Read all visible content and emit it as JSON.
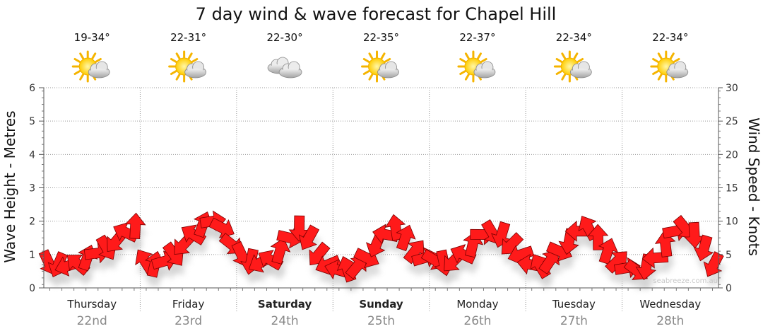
{
  "chart_data": {
    "type": "line",
    "title": "7 day wind & wave forecast for Chapel Hill",
    "ylabel_left": "Wave Height - Metres",
    "ylabel_right": "Wind Speed - Knots",
    "ylim_left": [
      0,
      6
    ],
    "ylim_right": [
      0,
      30
    ],
    "yticks_left": [
      "0",
      "1",
      "2",
      "3",
      "4",
      "5",
      "6"
    ],
    "yticks_right": [
      "0",
      "5",
      "10",
      "15",
      "20",
      "25",
      "30"
    ],
    "grid": true,
    "days": [
      {
        "day": "Thursday",
        "date": "22nd",
        "temp": "19-34°",
        "weather": "partly-cloudy-sun-icon",
        "bold": false
      },
      {
        "day": "Friday",
        "date": "23rd",
        "temp": "22-31°",
        "weather": "partly-cloudy-sun-icon",
        "bold": false
      },
      {
        "day": "Saturday",
        "date": "24th",
        "temp": "22-30°",
        "weather": "cloudy-icon",
        "bold": true
      },
      {
        "day": "Sunday",
        "date": "25th",
        "temp": "22-35°",
        "weather": "partly-cloudy-sun-icon",
        "bold": true
      },
      {
        "day": "Monday",
        "date": "26th",
        "temp": "22-37°",
        "weather": "partly-cloudy-sun-icon",
        "bold": false
      },
      {
        "day": "Tuesday",
        "date": "27th",
        "temp": "22-34°",
        "weather": "partly-cloudy-sun-icon",
        "bold": false
      },
      {
        "day": "Wednesday",
        "date": "28th",
        "temp": "22-34°",
        "weather": "partly-cloudy-sun-icon",
        "bold": false
      }
    ],
    "series": [
      {
        "name": "Wind Speed",
        "unit": "knots",
        "x_days": [
          0.0,
          0.1,
          0.2,
          0.3,
          0.4,
          0.5,
          0.6,
          0.7,
          0.8,
          0.9,
          1.0,
          1.1,
          1.2,
          1.3,
          1.4,
          1.5,
          1.6,
          1.7,
          1.8,
          1.9,
          2.0,
          2.1,
          2.2,
          2.3,
          2.4,
          2.5,
          2.6,
          2.7,
          2.8,
          2.9,
          3.0,
          3.1,
          3.2,
          3.3,
          3.4,
          3.5,
          3.6,
          3.7,
          3.8,
          3.9,
          4.0,
          4.1,
          4.2,
          4.3,
          4.4,
          4.5,
          4.6,
          4.7,
          4.8,
          4.9,
          5.0,
          5.1,
          5.2,
          5.3,
          5.4,
          5.5,
          5.6,
          5.7,
          5.8,
          5.9,
          6.0,
          6.1,
          6.2,
          6.3,
          6.4,
          6.5,
          6.6,
          6.7,
          6.8,
          6.9
        ],
        "values": [
          3.8,
          3.5,
          3.3,
          3.6,
          4.5,
          5.2,
          6.0,
          7.0,
          8.3,
          9.2,
          4.0,
          3.5,
          4.0,
          5.0,
          6.5,
          8.0,
          9.5,
          10.0,
          9.0,
          6.5,
          5.0,
          4.0,
          3.8,
          4.2,
          5.5,
          7.5,
          9.0,
          7.5,
          5.0,
          3.5,
          2.7,
          2.8,
          3.2,
          4.5,
          6.5,
          8.0,
          9.0,
          7.5,
          5.5,
          4.5,
          4.2,
          3.8,
          4.0,
          5.0,
          6.5,
          8.0,
          8.3,
          8.0,
          6.5,
          5.0,
          3.5,
          3.3,
          4.0,
          5.5,
          7.0,
          8.5,
          9.0,
          7.5,
          5.5,
          4.0,
          3.0,
          2.6,
          3.2,
          4.5,
          6.5,
          8.5,
          9.0,
          8.0,
          6.0,
          3.5
        ]
      }
    ],
    "x_categories": [
      "Thursday",
      "Friday",
      "Saturday",
      "Sunday",
      "Monday",
      "Tuesday",
      "Wednesday"
    ]
  },
  "watermark": "seabreeze.com.au",
  "colors": {
    "arrow": "#ff1a1a",
    "arrow_stroke": "#7a0000",
    "shadow": "#c8c8c8",
    "grid": "#999999"
  }
}
